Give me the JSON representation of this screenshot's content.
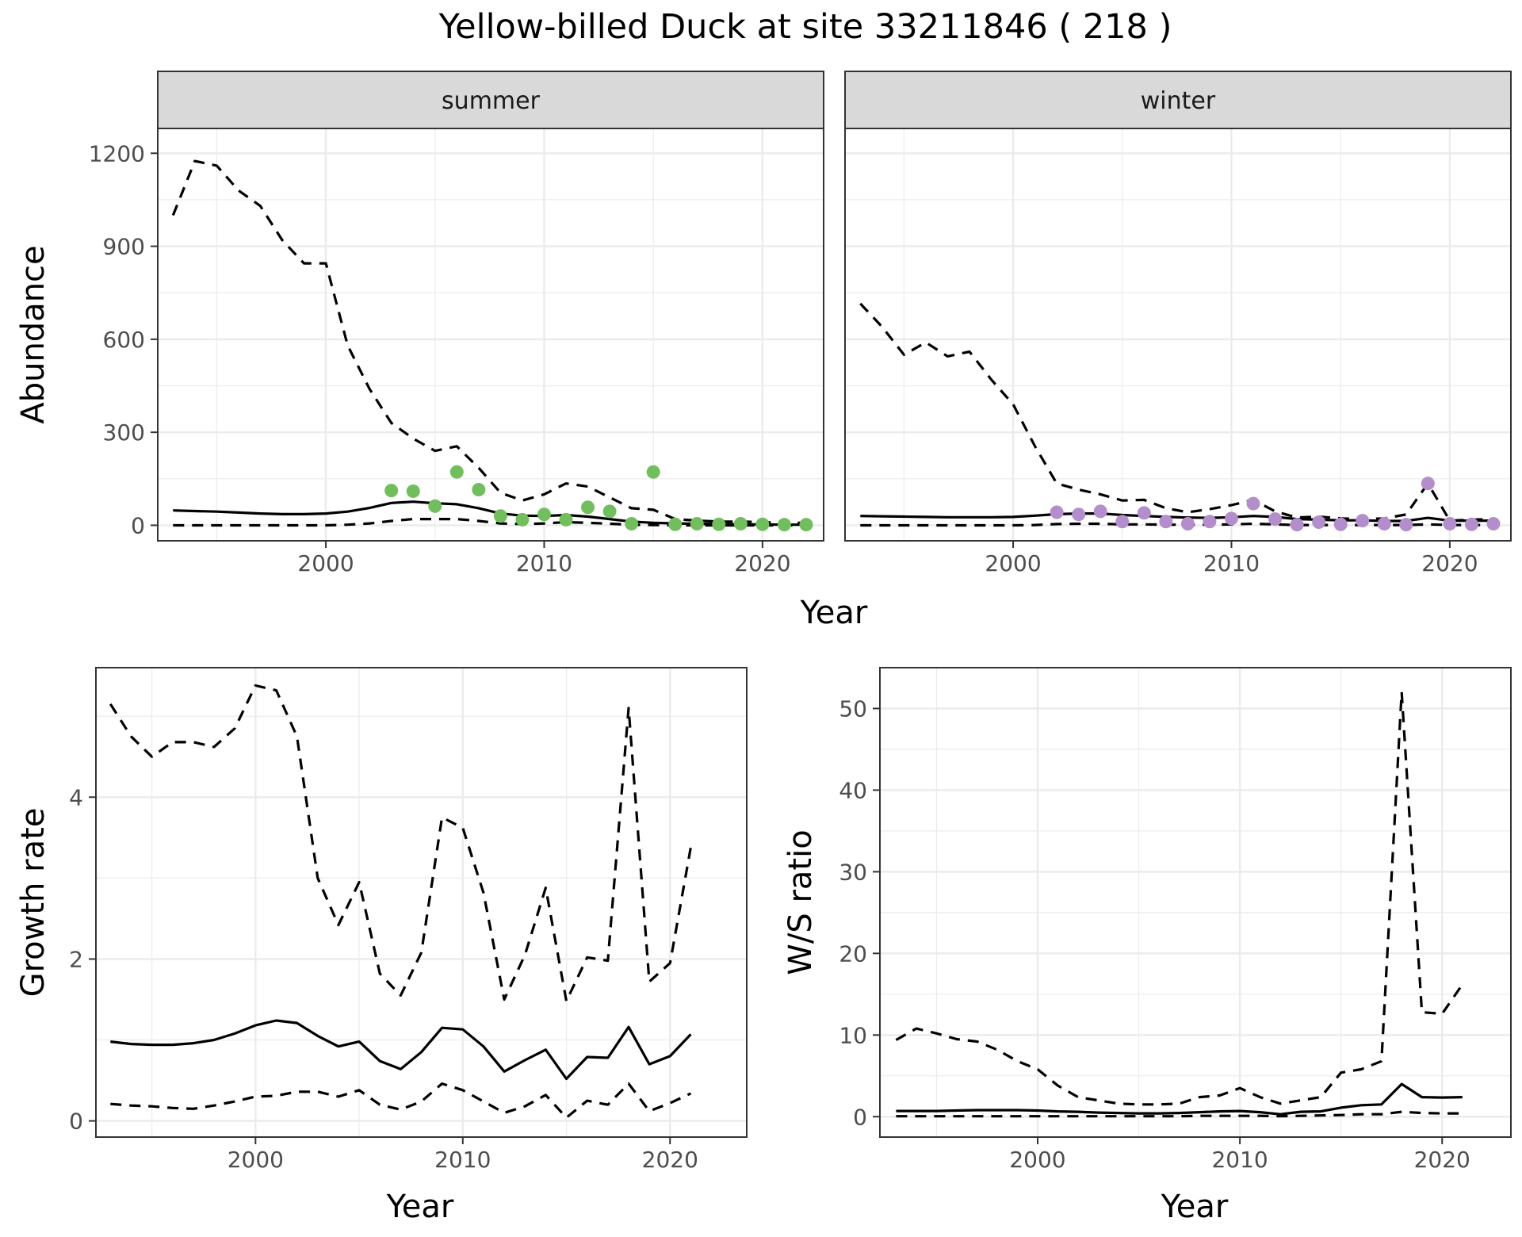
{
  "title": "Yellow-billed Duck at site 33211846 ( 218 )",
  "colors": {
    "summer_points": "#71bf5c",
    "winter_points": "#b38dcc"
  },
  "chart_data": [
    {
      "id": "abundance",
      "type": "line",
      "facet_layout": "two panels side by side sharing y-axis",
      "xlabel": "Year",
      "ylabel": "Abundance",
      "xlim": [
        1992.3,
        2022.8
      ],
      "ylim": [
        -50,
        1280
      ],
      "x_ticks": [
        2000,
        2010,
        2020
      ],
      "y_ticks": [
        0,
        300,
        600,
        900,
        1200
      ],
      "grid": true,
      "panels": [
        {
          "strip": "summer",
          "point_color": "#71bf5c",
          "mean": {
            "x": [
              1993,
              1994,
              1995,
              1996,
              1997,
              1998,
              1999,
              2000,
              2001,
              2002,
              2003,
              2004,
              2005,
              2006,
              2007,
              2008,
              2009,
              2010,
              2011,
              2012,
              2013,
              2014,
              2015,
              2016,
              2017,
              2018,
              2019,
              2020,
              2021,
              2022
            ],
            "y": [
              48,
              46,
              44,
              41,
              38,
              36,
              36,
              38,
              44,
              56,
              72,
              76,
              71,
              68,
              55,
              38,
              31,
              30,
              33,
              28,
              20,
              12,
              8,
              6,
              5,
              4,
              3,
              3,
              2,
              2
            ]
          },
          "upper": {
            "x": [
              1993,
              1994,
              1995,
              1996,
              1997,
              1998,
              1999,
              2000,
              2001,
              2002,
              2003,
              2004,
              2005,
              2006,
              2007,
              2008,
              2009,
              2010,
              2011,
              2012,
              2013,
              2014,
              2015,
              2016,
              2017,
              2018,
              2019,
              2020,
              2021,
              2022
            ],
            "y": [
              1000,
              1175,
              1160,
              1080,
              1030,
              920,
              845,
              845,
              580,
              440,
              330,
              280,
              240,
              255,
              185,
              105,
              80,
              100,
              135,
              125,
              90,
              55,
              50,
              20,
              15,
              12,
              12,
              10,
              8,
              8
            ]
          },
          "lower": {
            "x": [
              1993,
              1994,
              1995,
              1996,
              1997,
              1998,
              1999,
              2000,
              2001,
              2002,
              2003,
              2004,
              2005,
              2006,
              2007,
              2008,
              2009,
              2010,
              2011,
              2012,
              2013,
              2014,
              2015,
              2016,
              2017,
              2018,
              2019,
              2020,
              2021,
              2022
            ],
            "y": [
              0,
              0,
              0,
              0,
              0,
              0,
              0,
              0,
              2,
              6,
              14,
              20,
              20,
              20,
              14,
              6,
              4,
              6,
              10,
              8,
              5,
              2,
              1,
              0,
              0,
              0,
              0,
              0,
              0,
              0
            ]
          },
          "points": {
            "x": [
              2003,
              2004,
              2005,
              2006,
              2007,
              2008,
              2009,
              2010,
              2011,
              2012,
              2013,
              2014,
              2015,
              2016,
              2017,
              2018,
              2019,
              2020,
              2021,
              2022
            ],
            "y": [
              112,
              110,
              62,
              172,
              115,
              30,
              18,
              35,
              18,
              58,
              45,
              5,
              172,
              3,
              5,
              3,
              5,
              3,
              2,
              2
            ]
          }
        },
        {
          "strip": "winter",
          "point_color": "#b38dcc",
          "mean": {
            "x": [
              1993,
              1994,
              1995,
              1996,
              1997,
              1998,
              1999,
              2000,
              2001,
              2002,
              2003,
              2004,
              2005,
              2006,
              2007,
              2008,
              2009,
              2010,
              2011,
              2012,
              2013,
              2014,
              2015,
              2016,
              2017,
              2018,
              2019,
              2020,
              2021,
              2022
            ],
            "y": [
              30,
              29,
              28,
              27,
              26,
              26,
              26,
              27,
              31,
              36,
              38,
              38,
              33,
              30,
              27,
              25,
              24,
              26,
              30,
              27,
              20,
              18,
              16,
              16,
              14,
              14,
              24,
              15,
              15,
              15
            ]
          },
          "upper": {
            "x": [
              1993,
              1994,
              1995,
              1996,
              1997,
              1998,
              1999,
              2000,
              2001,
              2002,
              2003,
              2004,
              2005,
              2006,
              2007,
              2008,
              2009,
              2010,
              2011,
              2012,
              2013,
              2014,
              2015,
              2016,
              2017,
              2018,
              2019,
              2020,
              2021,
              2022
            ],
            "y": [
              715,
              640,
              550,
              590,
              545,
              560,
              470,
              390,
              255,
              135,
              115,
              100,
              80,
              82,
              55,
              42,
              52,
              65,
              82,
              45,
              25,
              28,
              22,
              20,
              22,
              35,
              135,
              15,
              18,
              20
            ]
          },
          "lower": {
            "x": [
              1993,
              1994,
              1995,
              1996,
              1997,
              1998,
              1999,
              2000,
              2001,
              2002,
              2003,
              2004,
              2005,
              2006,
              2007,
              2008,
              2009,
              2010,
              2011,
              2012,
              2013,
              2014,
              2015,
              2016,
              2017,
              2018,
              2019,
              2020,
              2021,
              2022
            ],
            "y": [
              0,
              0,
              0,
              0,
              0,
              0,
              0,
              0,
              1,
              4,
              5,
              5,
              3,
              3,
              2,
              2,
              2,
              3,
              5,
              3,
              1,
              1,
              1,
              1,
              1,
              1,
              3,
              1,
              1,
              1
            ]
          },
          "points": {
            "x": [
              2002,
              2003,
              2004,
              2005,
              2006,
              2007,
              2008,
              2009,
              2010,
              2011,
              2012,
              2013,
              2014,
              2015,
              2016,
              2017,
              2018,
              2019,
              2020,
              2021,
              2022
            ],
            "y": [
              42,
              35,
              45,
              12,
              40,
              12,
              5,
              12,
              22,
              70,
              20,
              2,
              10,
              3,
              15,
              5,
              2,
              135,
              5,
              3,
              5
            ]
          }
        }
      ]
    },
    {
      "id": "growth",
      "type": "line",
      "xlabel": "Year",
      "ylabel": "Growth rate",
      "xlim": [
        1992.3,
        2023.7
      ],
      "ylim": [
        -0.2,
        5.6
      ],
      "x_ticks": [
        2000,
        2010,
        2020
      ],
      "y_ticks": [
        0,
        2,
        4
      ],
      "grid": true,
      "mean": {
        "x": [
          1993,
          1994,
          1995,
          1996,
          1997,
          1998,
          1999,
          2000,
          2001,
          2002,
          2003,
          2004,
          2005,
          2006,
          2007,
          2008,
          2009,
          2010,
          2011,
          2012,
          2013,
          2014,
          2015,
          2016,
          2017,
          2018,
          2019,
          2020,
          2021
        ],
        "y": [
          0.98,
          0.95,
          0.94,
          0.94,
          0.96,
          1.0,
          1.08,
          1.18,
          1.24,
          1.21,
          1.05,
          0.92,
          0.98,
          0.74,
          0.64,
          0.85,
          1.15,
          1.13,
          0.92,
          0.61,
          0.75,
          0.88,
          0.52,
          0.79,
          0.78,
          1.16,
          0.7,
          0.8,
          1.07
        ]
      },
      "upper": {
        "x": [
          1993,
          1994,
          1995,
          1996,
          1997,
          1998,
          1999,
          2000,
          2001,
          2002,
          2003,
          2004,
          2005,
          2006,
          2007,
          2008,
          2009,
          2010,
          2011,
          2012,
          2013,
          2014,
          2015,
          2016,
          2017,
          2018,
          2019,
          2020,
          2021
        ],
        "y": [
          5.15,
          4.75,
          4.5,
          4.68,
          4.68,
          4.62,
          4.85,
          5.38,
          5.32,
          4.75,
          3.0,
          2.42,
          2.95,
          1.82,
          1.55,
          2.08,
          3.75,
          3.62,
          2.82,
          1.5,
          2.05,
          2.88,
          1.48,
          2.02,
          1.98,
          5.1,
          1.72,
          1.95,
          3.38
        ]
      },
      "lower": {
        "x": [
          1993,
          1994,
          1995,
          1996,
          1997,
          1998,
          1999,
          2000,
          2001,
          2002,
          2003,
          2004,
          2005,
          2006,
          2007,
          2008,
          2009,
          2010,
          2011,
          2012,
          2013,
          2014,
          2015,
          2016,
          2017,
          2018,
          2019,
          2020,
          2021
        ],
        "y": [
          0.21,
          0.19,
          0.18,
          0.16,
          0.15,
          0.19,
          0.24,
          0.3,
          0.31,
          0.36,
          0.36,
          0.3,
          0.38,
          0.2,
          0.14,
          0.24,
          0.46,
          0.38,
          0.24,
          0.1,
          0.18,
          0.32,
          0.04,
          0.25,
          0.2,
          0.46,
          0.12,
          0.22,
          0.34
        ]
      }
    },
    {
      "id": "ws_ratio",
      "type": "line",
      "xlabel": "Year",
      "ylabel": "W/S ratio",
      "xlim": [
        1992.2,
        2023.4
      ],
      "ylim": [
        -2.5,
        55
      ],
      "x_ticks": [
        2000,
        2010,
        2020
      ],
      "y_ticks": [
        0,
        10,
        20,
        30,
        40,
        50
      ],
      "grid": true,
      "mean": {
        "x": [
          1993,
          1994,
          1995,
          1996,
          1997,
          1998,
          1999,
          2000,
          2001,
          2002,
          2003,
          2004,
          2005,
          2006,
          2007,
          2008,
          2009,
          2010,
          2011,
          2012,
          2013,
          2014,
          2015,
          2016,
          2017,
          2018,
          2019,
          2020,
          2021
        ],
        "y": [
          0.7,
          0.7,
          0.7,
          0.75,
          0.8,
          0.8,
          0.8,
          0.75,
          0.65,
          0.6,
          0.5,
          0.45,
          0.4,
          0.4,
          0.45,
          0.55,
          0.65,
          0.7,
          0.55,
          0.3,
          0.6,
          0.65,
          1.1,
          1.4,
          1.5,
          4.0,
          2.4,
          2.35,
          2.4
        ]
      },
      "upper": {
        "x": [
          1993,
          1994,
          1995,
          1996,
          1997,
          1998,
          1999,
          2000,
          2001,
          2002,
          2003,
          2004,
          2005,
          2006,
          2007,
          2008,
          2009,
          2010,
          2011,
          2012,
          2013,
          2014,
          2015,
          2016,
          2017,
          2018,
          2019,
          2020,
          2021
        ],
        "y": [
          9.4,
          10.8,
          10.2,
          9.5,
          9.2,
          8.2,
          6.8,
          5.8,
          3.8,
          2.4,
          2.0,
          1.6,
          1.5,
          1.5,
          1.6,
          2.4,
          2.6,
          3.5,
          2.4,
          1.6,
          2.0,
          2.4,
          5.4,
          5.8,
          6.8,
          52.0,
          12.8,
          12.6,
          16.2
        ]
      },
      "lower": {
        "x": [
          1993,
          1994,
          1995,
          1996,
          1997,
          1998,
          1999,
          2000,
          2001,
          2002,
          2003,
          2004,
          2005,
          2006,
          2007,
          2008,
          2009,
          2010,
          2011,
          2012,
          2013,
          2014,
          2015,
          2016,
          2017,
          2018,
          2019,
          2020,
          2021
        ],
        "y": [
          0.05,
          0.05,
          0.05,
          0.05,
          0.05,
          0.05,
          0.05,
          0.05,
          0.05,
          0.05,
          0.05,
          0.05,
          0.05,
          0.05,
          0.05,
          0.1,
          0.1,
          0.1,
          0.1,
          0.05,
          0.1,
          0.15,
          0.2,
          0.3,
          0.3,
          0.6,
          0.45,
          0.4,
          0.4
        ]
      }
    }
  ]
}
